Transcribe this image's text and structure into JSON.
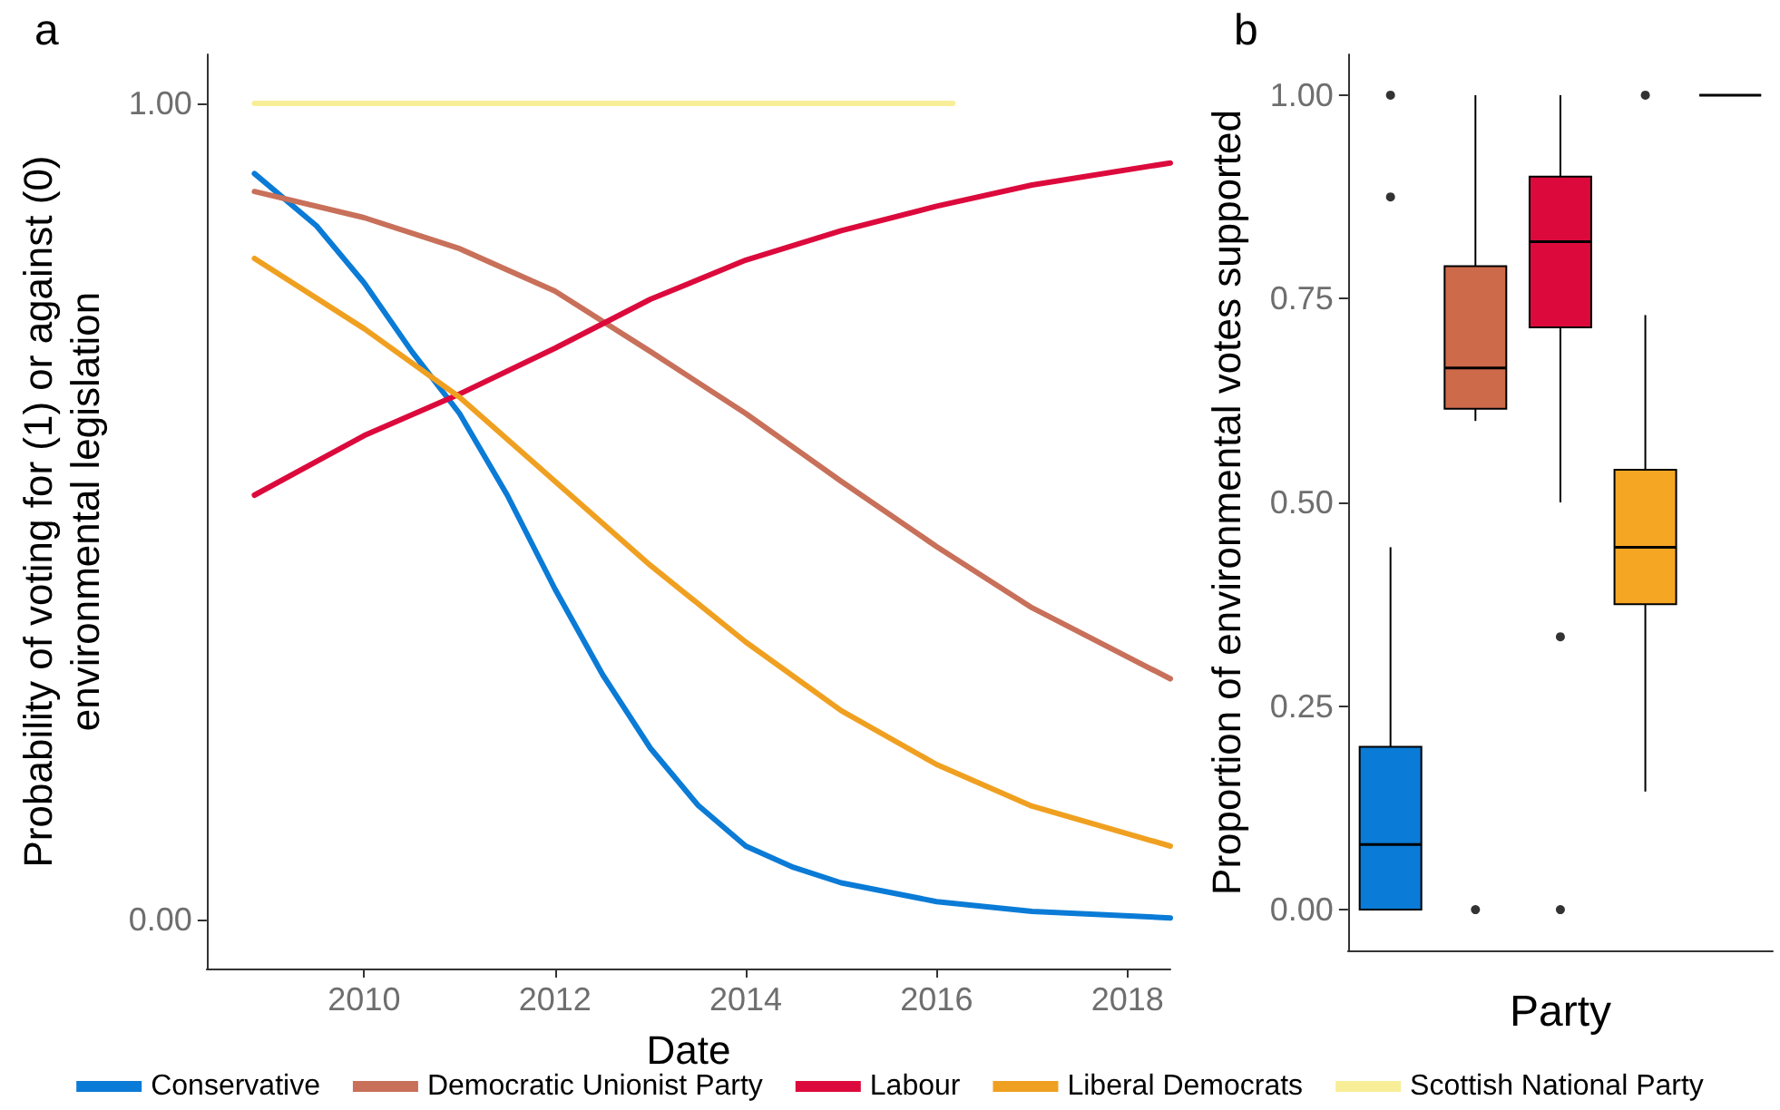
{
  "chart_data": [
    {
      "type": "line",
      "title": "a",
      "xlabel": "Date",
      "ylabel": "Probability of voting for (1) or against (0)\nenvironmental legislation",
      "xlim": [
        2008.35,
        2018.45
      ],
      "xticks": [
        2010,
        2012,
        2014,
        2016,
        2018
      ],
      "ylim": [
        -0.06,
        1.06
      ],
      "yticks": [
        {
          "value": 0,
          "label": "0.00"
        },
        {
          "value": 1,
          "label": "1.00"
        }
      ],
      "grid": false,
      "legend": "bottom",
      "marker": "none",
      "line_style": "solid",
      "series": [
        {
          "name": "Conservative",
          "color": "#0a7bd6",
          "x": [
            2008.85,
            2009.5,
            2010,
            2010.5,
            2011,
            2011.5,
            2012,
            2012.5,
            2013,
            2013.5,
            2014,
            2014.5,
            2015,
            2016,
            2017,
            2018.45
          ],
          "values": [
            0.914,
            0.85,
            0.78,
            0.696,
            0.62,
            0.52,
            0.405,
            0.3,
            0.21,
            0.14,
            0.09,
            0.064,
            0.045,
            0.022,
            0.01,
            0.002
          ]
        },
        {
          "name": "Democratic Unionist Party",
          "color": "#c8705a",
          "x": [
            2008.85,
            2010,
            2011,
            2012,
            2013,
            2014,
            2015,
            2016,
            2017,
            2018.45
          ],
          "values": [
            0.892,
            0.86,
            0.822,
            0.77,
            0.696,
            0.62,
            0.537,
            0.457,
            0.382,
            0.295
          ]
        },
        {
          "name": "Labour",
          "color": "#dc0a3c",
          "x": [
            2008.85,
            2010,
            2011,
            2012,
            2013,
            2014,
            2015,
            2016,
            2017,
            2018.45
          ],
          "values": [
            0.52,
            0.593,
            0.644,
            0.7,
            0.76,
            0.808,
            0.844,
            0.874,
            0.9,
            0.927
          ]
        },
        {
          "name": "Liberal Democrats",
          "color": "#f0a020",
          "x": [
            2008.85,
            2010,
            2011,
            2012,
            2013,
            2014,
            2015,
            2016,
            2017,
            2018.45
          ],
          "values": [
            0.81,
            0.724,
            0.64,
            0.537,
            0.434,
            0.34,
            0.256,
            0.19,
            0.139,
            0.09
          ]
        },
        {
          "name": "Scottish National Party",
          "color": "#f9ee98",
          "x": [
            2008.85,
            2016.17
          ],
          "values": [
            1,
            1
          ]
        }
      ]
    },
    {
      "type": "box",
      "title": "b",
      "xlabel": "Party",
      "ylabel": "Proportion of environmental votes supported",
      "categories": [
        null,
        null,
        null,
        null,
        null
      ],
      "colors": [
        "#0a7bd6",
        "#cd6a4a",
        "#dc0a3c",
        "#f5a623",
        "#000000"
      ],
      "ylim": [
        -0.05,
        1.05
      ],
      "yticks": [
        {
          "value": 0,
          "label": "0.00"
        },
        {
          "value": 0.25,
          "label": "0.25"
        },
        {
          "value": 0.5,
          "label": "0.50"
        },
        {
          "value": 0.75,
          "label": "0.75"
        },
        {
          "value": 1,
          "label": "1.00"
        }
      ],
      "grid": false,
      "boxes": [
        {
          "low": 0,
          "q1": 0,
          "median": 0.08,
          "q3": 0.2,
          "high": 0.445,
          "outliers": [
            0.875,
            1
          ]
        },
        {
          "low": 0.6,
          "q1": 0.615,
          "median": 0.665,
          "q3": 0.79,
          "high": 1,
          "outliers": [
            0
          ]
        },
        {
          "low": 0.5,
          "q1": 0.715,
          "median": 0.82,
          "q3": 0.9,
          "high": 1,
          "outliers": [
            0.335,
            0
          ]
        },
        {
          "low": 0.145,
          "q1": 0.375,
          "median": 0.445,
          "q3": 0.54,
          "high": 0.73,
          "outliers": [
            1
          ]
        },
        {
          "low": 1,
          "q1": 1,
          "median": 1,
          "q3": 1,
          "high": 1
        }
      ]
    }
  ]
}
